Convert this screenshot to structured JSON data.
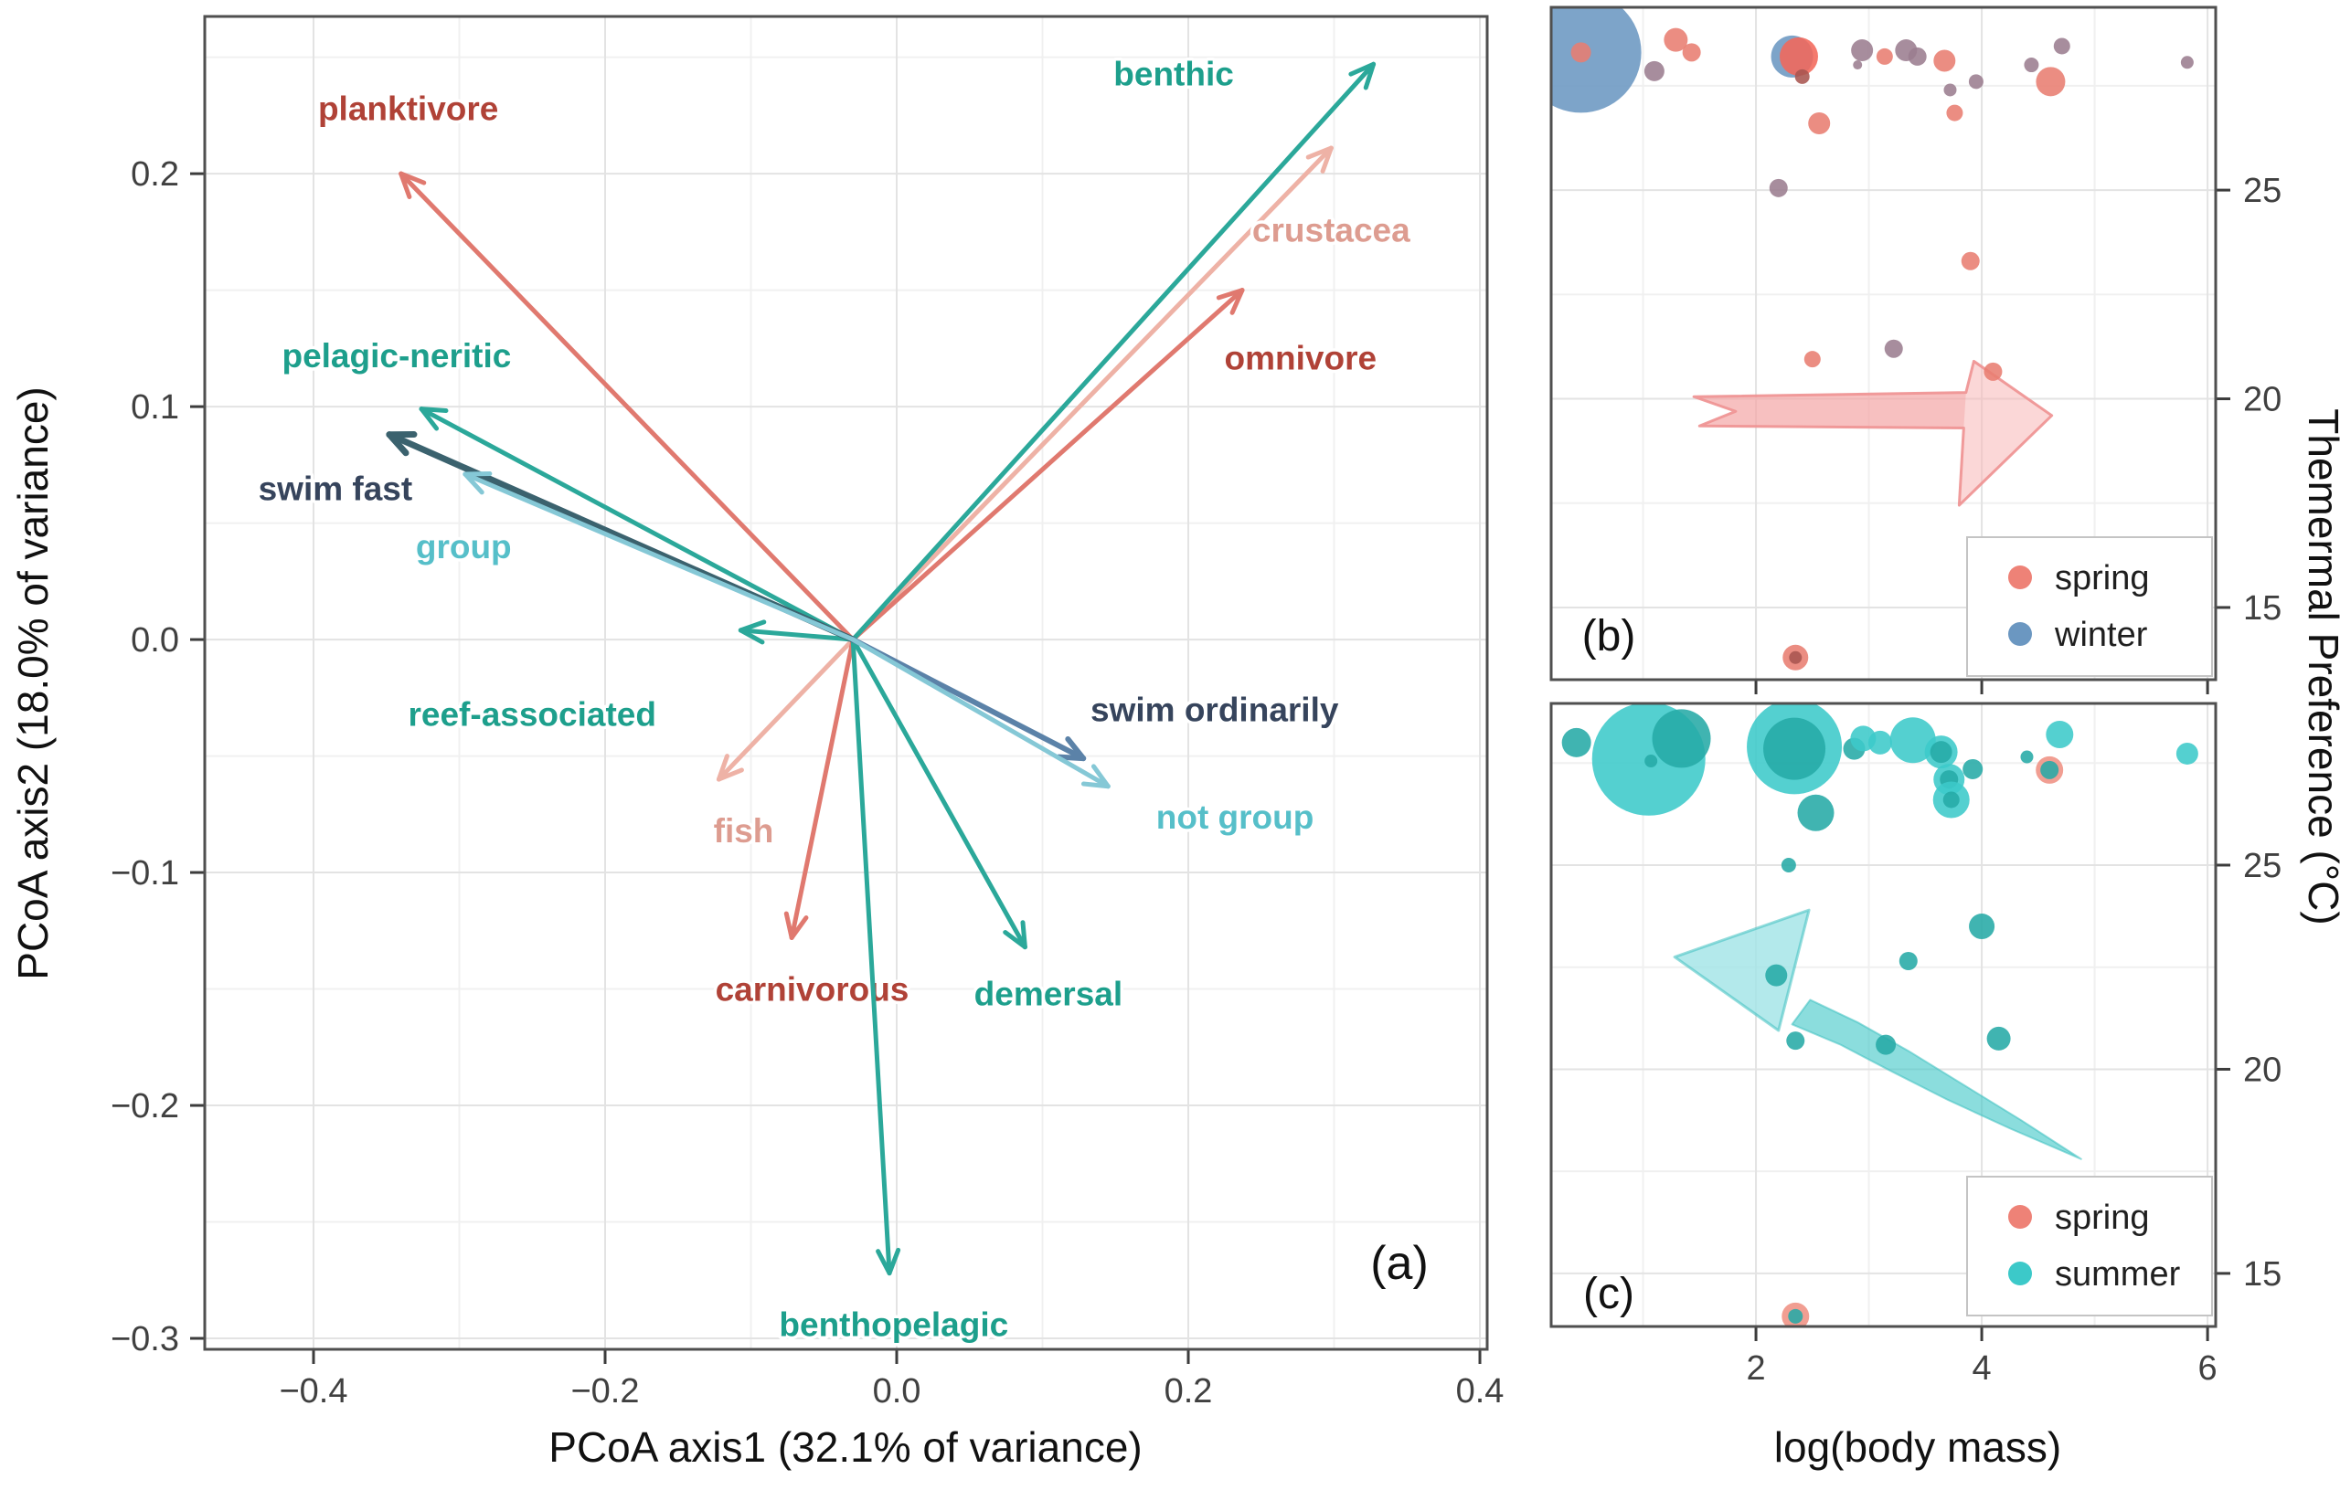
{
  "shared": {
    "y_right_label": "Themermal Preference (°C)",
    "x_label_bc": "log(body mass)"
  },
  "colors": {
    "spring": "#e87d71",
    "spring_bright": "#f2685a",
    "winter": "#6b97c1",
    "mix": "#9b7d90",
    "dark": "#a85550",
    "summer": "#3cc9c9",
    "sumdark": "#25aaa6",
    "ring": "#ef9183"
  },
  "chart_data": [
    {
      "id": "a",
      "type": "scatter",
      "subtype": "pcoa-vector-biplot",
      "panel_label": "(a)",
      "xlabel": "PCoA axis1 (32.1% of variance)",
      "ylabel": "PCoA axis2 (18.0% of variance)",
      "xlim": [
        -0.4746,
        0.405
      ],
      "ylim": [
        -0.3047,
        0.2675
      ],
      "xtick_vals": [
        -0.4,
        -0.2,
        0.0,
        0.2,
        0.4
      ],
      "xtick_labels": [
        "−0.4",
        "−0.2",
        "0.0",
        "0.2",
        "0.4"
      ],
      "ytick_vals": [
        0.2,
        0.1,
        0.0,
        -0.1,
        -0.2,
        -0.3
      ],
      "ytick_labels": [
        "0.2",
        "0.1",
        "0.0",
        "−0.1",
        "−0.2",
        "−0.3"
      ],
      "xminor": [
        -0.3,
        -0.1,
        0.1,
        0.3
      ],
      "yminor": [
        0.25,
        0.15,
        0.05,
        -0.05,
        -0.15,
        -0.25
      ],
      "grid": true,
      "origin": [
        -0.03,
        0.0
      ],
      "vectors": [
        {
          "label": "crustacea",
          "end": [
            0.298,
            0.211
          ],
          "color": "#eeb2a6",
          "lw": 5,
          "label_pos": [
            0.298,
            0.176
          ],
          "label_color": "#dd9c90"
        },
        {
          "label": "fish",
          "end": [
            -0.122,
            -0.06
          ],
          "color": "#eeb2a6",
          "lw": 5,
          "label_pos": [
            -0.105,
            -0.082
          ],
          "label_color": "#dd9c90"
        },
        {
          "label": "planktivore",
          "end": [
            -0.34,
            0.2
          ],
          "color": "#e0796f",
          "lw": 5,
          "label_pos": [
            -0.335,
            0.228
          ],
          "label_color": "#b04237"
        },
        {
          "label": "omnivore",
          "end": [
            0.237,
            0.15
          ],
          "color": "#e0796f",
          "lw": 5,
          "label_pos": [
            0.277,
            0.121
          ],
          "label_color": "#b04237"
        },
        {
          "label": "carnivorous",
          "end": [
            -0.072,
            -0.128
          ],
          "color": "#e0796f",
          "lw": 5,
          "label_pos": [
            -0.058,
            -0.15
          ],
          "label_color": "#b04237"
        },
        {
          "label": "benthic",
          "end": [
            0.327,
            0.247
          ],
          "color": "#2ba89a",
          "lw": 5,
          "label_pos": [
            0.19,
            0.243
          ],
          "label_color": "#1d9f8c"
        },
        {
          "label": "pelagic-neritic",
          "end": [
            -0.326,
            0.099
          ],
          "color": "#2ba89a",
          "lw": 5,
          "label_pos": [
            -0.343,
            0.122
          ],
          "label_color": "#1d9f8c"
        },
        {
          "label": "reef-associated",
          "end": [
            -0.107,
            0.004
          ],
          "color": "#2ba89a",
          "lw": 5,
          "label_pos": [
            -0.25,
            -0.032
          ],
          "label_color": "#1d9f8c"
        },
        {
          "label": "demersal",
          "end": [
            0.088,
            -0.132
          ],
          "color": "#2ba89a",
          "lw": 5,
          "label_pos": [
            0.104,
            -0.152
          ],
          "label_color": "#1d9f8c"
        },
        {
          "label": "benthopelagic",
          "end": [
            -0.005,
            -0.272
          ],
          "color": "#2ba89a",
          "lw": 5,
          "label_pos": [
            -0.002,
            -0.294
          ],
          "label_color": "#1d9f8c"
        },
        {
          "label": "swim fast",
          "end": [
            -0.348,
            0.088
          ],
          "color": "#3b626e",
          "lw": 7,
          "label_pos": [
            -0.385,
            0.065
          ],
          "label_color": "#36445c"
        },
        {
          "label": "swim ordinarily",
          "end": [
            0.128,
            -0.051
          ],
          "color": "#5b82a8",
          "lw": 6,
          "label_pos": [
            0.218,
            -0.03
          ],
          "label_color": "#36445c"
        },
        {
          "label": "group",
          "end": [
            -0.296,
            0.071
          ],
          "color": "#85c8d6",
          "lw": 5,
          "label_pos": [
            -0.297,
            0.04
          ],
          "label_color": "#56bfc9"
        },
        {
          "label": "not group",
          "end": [
            0.145,
            -0.063
          ],
          "color": "#85c8d6",
          "lw": 5,
          "label_pos": [
            0.232,
            -0.076
          ],
          "label_color": "#56bfc9"
        }
      ]
    },
    {
      "id": "b",
      "type": "scatter",
      "subtype": "bubble",
      "panel_label": "(b)",
      "xlabel": "",
      "ylabel_right_ticks": [
        25,
        20,
        15
      ],
      "xlim": [
        0.186,
        6.072
      ],
      "ylim": [
        13.27,
        29.38
      ],
      "xtick_vals": [
        2,
        4,
        6
      ],
      "xtick_labels": [],
      "ytick_vals": [
        25,
        20,
        15
      ],
      "ytick_labels": [
        "25",
        "20",
        "15"
      ],
      "xminor": [
        1,
        3,
        5
      ],
      "yminor": [
        27.5,
        22.5,
        17.5
      ],
      "grid": true,
      "legend": {
        "items": [
          {
            "label": "spring",
            "color": "#ee8277"
          },
          {
            "label": "winter",
            "color": "#6b97c1"
          }
        ]
      },
      "points": [
        [
          0.45,
          28.3,
          66,
          "winter"
        ],
        [
          0.45,
          28.3,
          11,
          "spring"
        ],
        [
          1.1,
          27.85,
          11,
          "mix"
        ],
        [
          1.29,
          28.6,
          13,
          "spring"
        ],
        [
          1.43,
          28.3,
          10,
          "spring"
        ],
        [
          2.32,
          28.2,
          23,
          "winter"
        ],
        [
          2.38,
          28.2,
          21,
          "spring_bright"
        ],
        [
          2.41,
          27.72,
          8,
          "dark"
        ],
        [
          2.56,
          26.6,
          12,
          "spring"
        ],
        [
          2.94,
          28.35,
          12,
          "mix"
        ],
        [
          2.9,
          28.0,
          5,
          "mix"
        ],
        [
          3.14,
          28.2,
          9,
          "spring"
        ],
        [
          3.33,
          28.35,
          12,
          "mix"
        ],
        [
          3.43,
          28.2,
          10,
          "mix"
        ],
        [
          3.67,
          28.1,
          12,
          "spring"
        ],
        [
          3.95,
          27.6,
          8,
          "mix"
        ],
        [
          3.72,
          27.4,
          7,
          "mix"
        ],
        [
          3.76,
          26.85,
          9,
          "spring"
        ],
        [
          4.44,
          28.0,
          8,
          "mix"
        ],
        [
          4.71,
          28.45,
          9,
          "mix"
        ],
        [
          4.61,
          27.6,
          16,
          "spring"
        ],
        [
          5.82,
          28.06,
          7,
          "mix"
        ],
        [
          2.2,
          25.05,
          10,
          "mix"
        ],
        [
          3.9,
          23.3,
          10,
          "spring"
        ],
        [
          2.5,
          20.95,
          9,
          "spring"
        ],
        [
          3.22,
          21.2,
          10,
          "mix"
        ],
        [
          4.1,
          20.65,
          10,
          "spring"
        ],
        [
          2.35,
          13.8,
          14,
          "spring"
        ],
        [
          2.35,
          13.8,
          7,
          "dark"
        ]
      ],
      "arrow": {
        "direction": "right",
        "fill": "rgba(247,183,183,0.55)",
        "body_fill": "rgba(240,150,150,0.35)",
        "stroke": "rgba(238,145,145,0.9)",
        "outline": [
          [
            1.45,
            20.05
          ],
          [
            3.86,
            20.15
          ],
          [
            3.93,
            20.9
          ],
          [
            4.62,
            19.6
          ],
          [
            3.8,
            17.45
          ],
          [
            3.84,
            19.3
          ],
          [
            1.5,
            19.35
          ],
          [
            1.82,
            19.7
          ]
        ],
        "body": [
          [
            1.45,
            20.05
          ],
          [
            3.86,
            20.15
          ],
          [
            3.84,
            19.3
          ],
          [
            1.5,
            19.35
          ],
          [
            1.82,
            19.7
          ]
        ]
      }
    },
    {
      "id": "c",
      "type": "scatter",
      "subtype": "bubble",
      "panel_label": "(c)",
      "xlabel": "log(body mass)",
      "ylabel_right_ticks": [
        25,
        20,
        15
      ],
      "xlim": [
        0.186,
        6.072
      ],
      "ylim": [
        13.7,
        28.96
      ],
      "xtick_vals": [
        2,
        4,
        6
      ],
      "xtick_labels": [
        "2",
        "4",
        "6"
      ],
      "ytick_vals": [
        25,
        20,
        15
      ],
      "ytick_labels": [
        "25",
        "20",
        "15"
      ],
      "xminor": [
        1,
        3,
        5
      ],
      "yminor": [
        27.5,
        22.5,
        17.5
      ],
      "grid": true,
      "legend": {
        "items": [
          {
            "label": "spring",
            "color": "#ee8277"
          },
          {
            "label": "summer",
            "color": "#3cc9c9"
          }
        ]
      },
      "points": [
        [
          0.41,
          28.0,
          16,
          "sumdark"
        ],
        [
          1.05,
          27.6,
          62,
          "summer"
        ],
        [
          1.34,
          28.1,
          32,
          "sumdark"
        ],
        [
          1.07,
          27.55,
          7,
          "sumdark"
        ],
        [
          2.34,
          27.9,
          52,
          "summer"
        ],
        [
          2.34,
          27.85,
          34,
          "sumdark"
        ],
        [
          2.87,
          27.85,
          12,
          "sumdark"
        ],
        [
          2.95,
          28.1,
          14,
          "summer"
        ],
        [
          3.1,
          28.0,
          13,
          "summer"
        ],
        [
          3.39,
          28.06,
          25,
          "summer"
        ],
        [
          3.64,
          27.77,
          18,
          "summer"
        ],
        [
          3.64,
          27.77,
          12,
          "sumdark"
        ],
        [
          3.92,
          27.35,
          11,
          "sumdark"
        ],
        [
          3.71,
          27.1,
          17,
          "summer"
        ],
        [
          3.71,
          27.1,
          10,
          "sumdark"
        ],
        [
          3.73,
          26.6,
          20,
          "summer"
        ],
        [
          3.73,
          26.6,
          9,
          "sumdark"
        ],
        [
          4.4,
          27.65,
          7,
          "sumdark"
        ],
        [
          4.6,
          27.33,
          15,
          "ring"
        ],
        [
          4.6,
          27.33,
          10,
          "sumdark"
        ],
        [
          4.69,
          28.2,
          15,
          "summer"
        ],
        [
          5.82,
          27.73,
          12,
          "summer"
        ],
        [
          2.53,
          26.28,
          20,
          "sumdark"
        ],
        [
          2.29,
          25.0,
          8,
          "sumdark"
        ],
        [
          4.0,
          23.5,
          14,
          "sumdark"
        ],
        [
          3.35,
          22.65,
          10,
          "sumdark"
        ],
        [
          2.18,
          22.3,
          12,
          "sumdark"
        ],
        [
          2.35,
          20.7,
          10,
          "sumdark"
        ],
        [
          3.15,
          20.6,
          11,
          "sumdark"
        ],
        [
          4.15,
          20.75,
          13,
          "sumdark"
        ],
        [
          2.35,
          13.95,
          15,
          "ring"
        ],
        [
          2.35,
          13.95,
          8,
          "sumdark"
        ]
      ],
      "arrow": {
        "direction": "curved-left",
        "fill": "rgba(160,228,230,0.80)",
        "body_fill": "rgba(62,198,198,0.60)",
        "stroke": "rgba(60,192,192,0.55)",
        "head": [
          [
            1.28,
            22.75
          ],
          [
            2.47,
            23.9
          ],
          [
            2.2,
            20.95
          ]
        ],
        "body_top": [
          [
            2.48,
            21.7
          ],
          [
            2.9,
            21.15
          ],
          [
            3.35,
            20.45
          ],
          [
            3.85,
            19.6
          ],
          [
            4.35,
            18.75
          ],
          [
            4.88,
            17.8
          ]
        ],
        "body_bottom": [
          [
            4.88,
            17.8
          ],
          [
            4.25,
            18.55
          ],
          [
            3.7,
            19.25
          ],
          [
            3.2,
            19.95
          ],
          [
            2.75,
            20.6
          ],
          [
            2.32,
            21.1
          ]
        ]
      }
    }
  ]
}
